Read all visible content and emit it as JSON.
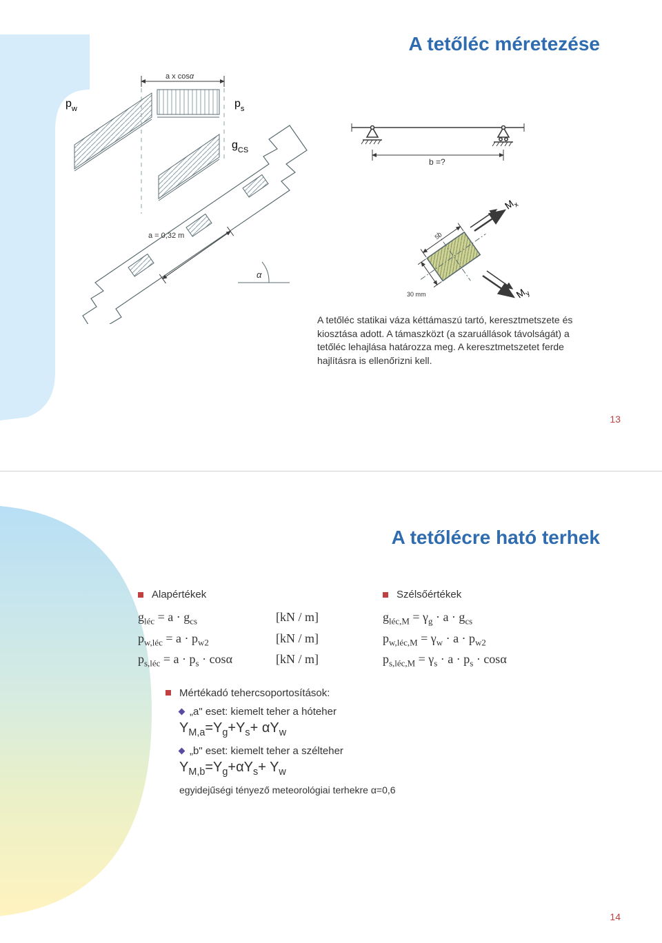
{
  "slide13": {
    "title": "A tetőléc méretezése",
    "page_number": "13",
    "accent_color": "#2e6baf",
    "page_color": "#c04040",
    "note": "A tetőléc statikai váza kéttámaszú tartó, keresztmetszete és kiosztása adott.  A támaszközt (a szaruállások távolságát) a tetőléc lehajlása határozza meg. A keresztmetszetet ferde hajlításra is ellenőrizni kell.",
    "diagram": {
      "labels": {
        "pw": "p",
        "pw_sub": "w",
        "ps": "p",
        "ps_sub": "s",
        "gcs": "g",
        "gcs_sub": "CS",
        "span": "a x cos",
        "a032": "a = 0,32 m",
        "alpha": "α",
        "bq": "b =?",
        "mx": "M",
        "mx_sub": "x",
        "my": "M",
        "my_sub": "y",
        "w50": "50",
        "w30": "30 mm"
      },
      "colors": {
        "line": "#5a6b70",
        "hatch": "#8aa0a5",
        "dashed": "#8aa0a5",
        "moment_bg": "#b8c088",
        "beam_line": "#3a3a3a"
      }
    }
  },
  "slide14": {
    "title": "A tetőlécre ható terhek",
    "page_number": "14",
    "accent_color": "#2e6baf",
    "page_color": "#c04040",
    "columns": {
      "base_header": "Alapértékek",
      "ext_header": "Szélsőértékek"
    },
    "eq_base": [
      {
        "lhs_html": "g<span class='sub'>léc</span> = a · g<span class='sub'>cs</span>",
        "unit": "[kN / m]"
      },
      {
        "lhs_html": "p<span class='sub'>w,léc</span> = a · p<span class='sub'>w2</span>",
        "unit": "[kN / m]"
      },
      {
        "lhs_html": "p<span class='sub'>s,léc</span> = a · p<span class='sub'>s</span> · cosα",
        "unit": "[kN / m]"
      }
    ],
    "eq_ext": [
      {
        "lhs_html": "g<span class='sub'>léc,M</span> = γ<span class='sub'>g</span> · a · g<span class='sub'>cs</span>"
      },
      {
        "lhs_html": "p<span class='sub'>w,léc,M</span> = γ<span class='sub'>w</span> · a · p<span class='sub'>w2</span>"
      },
      {
        "lhs_html": "p<span class='sub'>s,léc,M</span> = γ<span class='sub'>s</span> · a · p<span class='sub'>s</span> · cosα"
      }
    ],
    "load_groups": {
      "header": "Mértékadó tehercsoportosítások:",
      "case_a_label": "„a\" eset: kiemelt teher a hóteher",
      "case_a_formula_html": "Y<span class='sub'>M,a</span>=Y<span class='sub'>g</span>+Y<span class='sub'>s</span>+ αY<span class='sub'>w</span>",
      "case_b_label": "„b\" eset: kiemelt teher a szélteher",
      "case_b_formula_html": "Y<span class='sub'>M,b</span>=Y<span class='sub'>g</span>+αY<span class='sub'>s</span>+ Y<span class='sub'>w</span>",
      "factor": "egyidejűségi tényező meteorológiai terhekre α=0,6"
    },
    "gradient": {
      "top": "#b8dff6",
      "mid": "#e9efc4",
      "bot": "#fff3bf"
    }
  }
}
